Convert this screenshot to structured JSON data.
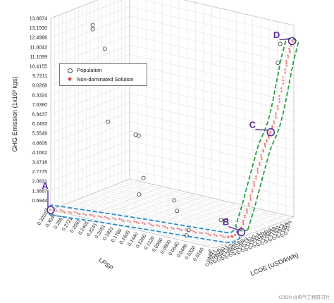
{
  "chart_data": {
    "type": "scatter",
    "series": [
      {
        "name": "Population",
        "points": [
          {
            "lpsp": 0.32,
            "lcoe": 0.1312,
            "ghg": 12.2
          },
          {
            "lpsp": 0.32,
            "lcoe": 0.1312,
            "ghg": 11.9
          },
          {
            "lpsp": 0.3,
            "lcoe": 0.135,
            "ghg": 10.6
          },
          {
            "lpsp": 0.28,
            "lcoe": 0.12,
            "ghg": 5.7
          },
          {
            "lpsp": 0.24,
            "lcoe": 0.135,
            "ghg": 4.9
          },
          {
            "lpsp": 0.22,
            "lcoe": 0.12,
            "ghg": 5.2
          },
          {
            "lpsp": 0.22,
            "lcoe": 0.13,
            "ghg": 2.0
          },
          {
            "lpsp": 0.2,
            "lcoe": 0.1,
            "ghg": 1.4
          },
          {
            "lpsp": 0.16,
            "lcoe": 0.13,
            "ghg": 0.9
          },
          {
            "lpsp": 0.15,
            "lcoe": 0.125,
            "ghg": 0.3
          },
          {
            "lpsp": 0.05,
            "lcoe": 0.11,
            "ghg": 0.7
          },
          {
            "lpsp": 0.03,
            "lcoe": 0.1,
            "ghg": 1.0
          },
          {
            "lpsp": 0.08,
            "lcoe": 0.075,
            "ghg": 0.2
          },
          {
            "lpsp": 0.07,
            "lcoe": 0.06,
            "ghg": 0.1
          },
          {
            "lpsp": 0.01,
            "lcoe": 0.19,
            "ghg": 12.7
          },
          {
            "lpsp": 0.01,
            "lcoe": 0.185,
            "ghg": 11.4
          }
        ]
      },
      {
        "name": "Non-dominated Solution",
        "points": [
          {
            "lpsp": 0.32,
            "lcoe": 0.0446,
            "ghg": 0.0
          },
          {
            "lpsp": 0.3,
            "lcoe": 0.048,
            "ghg": 0.0
          },
          {
            "lpsp": 0.28,
            "lcoe": 0.051,
            "ghg": 0.0
          },
          {
            "lpsp": 0.26,
            "lcoe": 0.0545,
            "ghg": 0.0
          },
          {
            "lpsp": 0.24,
            "lcoe": 0.058,
            "ghg": 0.0
          },
          {
            "lpsp": 0.22,
            "lcoe": 0.061,
            "ghg": 0.0
          },
          {
            "lpsp": 0.2,
            "lcoe": 0.064,
            "ghg": 0.0
          },
          {
            "lpsp": 0.18,
            "lcoe": 0.067,
            "ghg": 0.0
          },
          {
            "lpsp": 0.16,
            "lcoe": 0.07,
            "ghg": 0.0
          },
          {
            "lpsp": 0.14,
            "lcoe": 0.0725,
            "ghg": 0.0
          },
          {
            "lpsp": 0.12,
            "lcoe": 0.075,
            "ghg": 0.0
          },
          {
            "lpsp": 0.1,
            "lcoe": 0.0775,
            "ghg": 0.0
          },
          {
            "lpsp": 0.08,
            "lcoe": 0.08,
            "ghg": 0.0
          },
          {
            "lpsp": 0.06,
            "lcoe": 0.0825,
            "ghg": 0.0
          },
          {
            "lpsp": 0.04,
            "lcoe": 0.085,
            "ghg": 0.0
          },
          {
            "lpsp": 0.02,
            "lcoe": 0.088,
            "ghg": 0.0
          },
          {
            "lpsp": 0.01,
            "lcoe": 0.091,
            "ghg": 0.05
          },
          {
            "lpsp": 0.005,
            "lcoe": 0.095,
            "ghg": 0.25
          },
          {
            "lpsp": 0.0,
            "lcoe": 0.1,
            "ghg": 0.7
          },
          {
            "lpsp": 0.0,
            "lcoe": 0.106,
            "ghg": 1.3
          },
          {
            "lpsp": 0.0,
            "lcoe": 0.112,
            "ghg": 1.9
          },
          {
            "lpsp": 0.0,
            "lcoe": 0.118,
            "ghg": 2.6
          },
          {
            "lpsp": 0.0,
            "lcoe": 0.124,
            "ghg": 3.3
          },
          {
            "lpsp": 0.0,
            "lcoe": 0.13,
            "ghg": 4.0
          },
          {
            "lpsp": 0.0,
            "lcoe": 0.136,
            "ghg": 4.7
          },
          {
            "lpsp": 0.0,
            "lcoe": 0.142,
            "ghg": 5.4
          },
          {
            "lpsp": 0.0,
            "lcoe": 0.148,
            "ghg": 6.0
          },
          {
            "lpsp": 0.0,
            "lcoe": 0.154,
            "ghg": 6.4
          },
          {
            "lpsp": 0.0,
            "lcoe": 0.16,
            "ghg": 6.8
          },
          {
            "lpsp": 0.0,
            "lcoe": 0.166,
            "ghg": 7.3
          },
          {
            "lpsp": 0.0,
            "lcoe": 0.172,
            "ghg": 8.0
          },
          {
            "lpsp": 0.0,
            "lcoe": 0.178,
            "ghg": 8.9
          },
          {
            "lpsp": 0.0,
            "lcoe": 0.184,
            "ghg": 9.9
          },
          {
            "lpsp": 0.0,
            "lcoe": 0.19,
            "ghg": 10.9
          },
          {
            "lpsp": 0.0,
            "lcoe": 0.195,
            "ghg": 11.7
          },
          {
            "lpsp": 0.0,
            "lcoe": 0.2,
            "ghg": 12.3
          },
          {
            "lpsp": 0.0,
            "lcoe": 0.204,
            "ghg": 12.8
          }
        ]
      }
    ],
    "xlabel": "LCOE (USD/kWh)",
    "ylabel": "LPSP",
    "zlabel": "GHG Emission (1x10³ kgs)",
    "xlim": [
      0.0446,
      0.2075
    ],
    "ylim": [
      0,
      0.3201
    ],
    "zlim": [
      0,
      13.8874
    ],
    "x_ticks": [
      "0.0446",
      "0.0527",
      "0.0609",
      "0.0690",
      "0.0772",
      "0.0853",
      "0.0935",
      "0.1016",
      "0.1098",
      "0.1179",
      "0.1261",
      "0.1342",
      "0.1424",
      "0.1505",
      "0.1586",
      "0.1668",
      "0.1749",
      "0.1831",
      "0.1912",
      "0.1994",
      "0.2075"
    ],
    "y_ticks": [
      "0",
      "0.0160",
      "0.0320",
      "0.0480",
      "0.0640",
      "0.0800",
      "0.0960",
      "0.1120",
      "0.1280",
      "0.1440",
      "0.1600",
      "0.1760",
      "0.1921",
      "0.2081",
      "0.2241",
      "0.2401",
      "0.2561",
      "0.2721",
      "0.2881",
      "0.3041",
      "0.3201"
    ],
    "z_ticks": [
      "0",
      "0.6944",
      "1.3887",
      "2.0831",
      "2.7775",
      "3.4718",
      "4.1662",
      "4.8606",
      "5.5549",
      "6.2493",
      "6.9437",
      "7.6380",
      "8.3324",
      "9.0268",
      "9.7211",
      "10.4155",
      "11.1099",
      "11.8042",
      "12.4986",
      "13.1930",
      "13.8874"
    ],
    "grid": true,
    "legend_position": "top-left",
    "annotations": [
      {
        "label": "A",
        "lpsp": 0.3201,
        "lcoe": 0.0446,
        "ghg": 0
      },
      {
        "label": "B",
        "lpsp": 0,
        "lcoe": 0.099,
        "ghg": 0.4
      },
      {
        "label": "C",
        "lpsp": 0,
        "lcoe": 0.16,
        "ghg": 6.8
      },
      {
        "label": "D",
        "lpsp": 0,
        "lcoe": 0.204,
        "ghg": 12.8
      }
    ],
    "colors": {
      "population": "#444444",
      "non_dominated": "#e03030",
      "annotation": "#5b2d9c",
      "blue_highlight": "#2a8fd0",
      "green_highlight": "#2aa040"
    }
  },
  "legend": {
    "population_label": "Population",
    "non_dominated_label": "Non-dominated Solution"
  },
  "watermark": "CSDN @电气工程研习社"
}
